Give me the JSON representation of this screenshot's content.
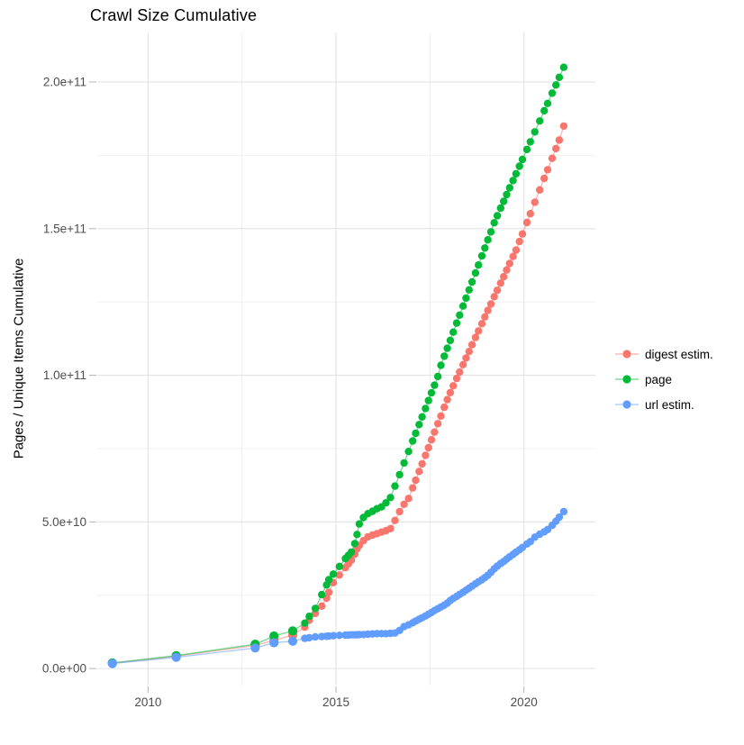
{
  "chart": {
    "title": "Crawl Size Cumulative",
    "y_axis_title": "Pages / Unique Items Cumulative"
  },
  "chart_data": {
    "type": "scatter",
    "title": "Crawl Size Cumulative",
    "xlabel": "",
    "ylabel": "Pages / Unique Items Cumulative",
    "grid": true,
    "legend_position": "right",
    "x_domain": [
      2008.65,
      2021.9
    ],
    "y_domain_billion": [
      -5.8,
      216.9
    ],
    "y_unit_multiplier": 1000000000.0,
    "x_ticks": [
      2010,
      2015,
      2020
    ],
    "x_tick_labels": [
      "2010",
      "2015",
      "2020"
    ],
    "x_minor_ticks": [
      2012.5,
      2017.5
    ],
    "y_ticks_billion": [
      0,
      50,
      100,
      150,
      200
    ],
    "y_tick_labels": [
      "0.0e+00",
      "5.0e+10",
      "1.0e+11",
      "1.5e+11",
      "2.0e+11"
    ],
    "y_minor_ticks_billion": [
      25,
      75,
      125,
      175
    ],
    "series": [
      {
        "name": "digest estim.",
        "color": "#F8766D",
        "points_year_billion": [
          [
            2009.05,
            1.8
          ],
          [
            2010.75,
            4.2
          ],
          [
            2012.85,
            7.9
          ],
          [
            2013.35,
            9.6
          ],
          [
            2013.85,
            11.4
          ],
          [
            2014.17,
            14.1
          ],
          [
            2014.29,
            16.5
          ],
          [
            2014.45,
            18.8
          ],
          [
            2014.62,
            21.3
          ],
          [
            2014.75,
            24.0
          ],
          [
            2014.81,
            26.0
          ],
          [
            2014.93,
            29.3
          ],
          [
            2015.09,
            31.9
          ],
          [
            2015.25,
            34.4
          ],
          [
            2015.33,
            35.7
          ],
          [
            2015.41,
            37.0
          ],
          [
            2015.5,
            39.0
          ],
          [
            2015.56,
            40.8
          ],
          [
            2015.62,
            42.0
          ],
          [
            2015.73,
            43.6
          ],
          [
            2015.85,
            44.9
          ],
          [
            2015.97,
            45.5
          ],
          [
            2016.09,
            46.0
          ],
          [
            2016.21,
            46.5
          ],
          [
            2016.33,
            47.0
          ],
          [
            2016.45,
            47.7
          ],
          [
            2016.57,
            50.5
          ],
          [
            2016.69,
            53.5
          ],
          [
            2016.81,
            56.0
          ],
          [
            2016.93,
            58.0
          ],
          [
            2017.04,
            61.6
          ],
          [
            2017.12,
            64.2
          ],
          [
            2017.21,
            67.2
          ],
          [
            2017.29,
            69.8
          ],
          [
            2017.38,
            72.7
          ],
          [
            2017.46,
            75.3
          ],
          [
            2017.54,
            78.0
          ],
          [
            2017.62,
            80.6
          ],
          [
            2017.71,
            83.5
          ],
          [
            2017.79,
            86.1
          ],
          [
            2017.88,
            89.1
          ],
          [
            2017.96,
            91.7
          ],
          [
            2018.04,
            94.1
          ],
          [
            2018.12,
            96.4
          ],
          [
            2018.21,
            98.9
          ],
          [
            2018.29,
            101.1
          ],
          [
            2018.38,
            103.6
          ],
          [
            2018.46,
            105.9
          ],
          [
            2018.54,
            108.1
          ],
          [
            2018.62,
            110.4
          ],
          [
            2018.71,
            112.9
          ],
          [
            2018.79,
            115.1
          ],
          [
            2018.88,
            117.6
          ],
          [
            2018.96,
            119.9
          ],
          [
            2019.04,
            122.1
          ],
          [
            2019.12,
            124.3
          ],
          [
            2019.21,
            126.8
          ],
          [
            2019.29,
            129.0
          ],
          [
            2019.38,
            131.4
          ],
          [
            2019.46,
            133.6
          ],
          [
            2019.54,
            135.9
          ],
          [
            2019.62,
            138.1
          ],
          [
            2019.71,
            140.5
          ],
          [
            2019.79,
            142.7
          ],
          [
            2019.88,
            145.6
          ],
          [
            2019.96,
            148.2
          ],
          [
            2020.08,
            152.1
          ],
          [
            2020.17,
            155.1
          ],
          [
            2020.29,
            159.0
          ],
          [
            2020.42,
            163.2
          ],
          [
            2020.54,
            167.1
          ],
          [
            2020.63,
            170.1
          ],
          [
            2020.75,
            174.0
          ],
          [
            2020.85,
            177.3
          ],
          [
            2020.94,
            180.2
          ],
          [
            2021.06,
            185.0
          ]
        ]
      },
      {
        "name": "page",
        "color": "#00BA38",
        "points_year_billion": [
          [
            2009.05,
            1.9
          ],
          [
            2010.75,
            4.4
          ],
          [
            2012.85,
            8.3
          ],
          [
            2013.35,
            11.1
          ],
          [
            2013.85,
            12.8
          ],
          [
            2014.17,
            15.5
          ],
          [
            2014.29,
            17.8
          ],
          [
            2014.45,
            20.5
          ],
          [
            2014.62,
            25.2
          ],
          [
            2014.75,
            28.5
          ],
          [
            2014.81,
            30.3
          ],
          [
            2014.93,
            32.2
          ],
          [
            2015.09,
            34.8
          ],
          [
            2015.25,
            37.5
          ],
          [
            2015.33,
            38.6
          ],
          [
            2015.41,
            39.7
          ],
          [
            2015.5,
            42.6
          ],
          [
            2015.56,
            45.7
          ],
          [
            2015.62,
            49.3
          ],
          [
            2015.73,
            51.5
          ],
          [
            2015.85,
            52.8
          ],
          [
            2015.97,
            53.6
          ],
          [
            2016.09,
            54.5
          ],
          [
            2016.21,
            55.1
          ],
          [
            2016.33,
            56.5
          ],
          [
            2016.45,
            58.3
          ],
          [
            2016.57,
            62.2
          ],
          [
            2016.69,
            66.1
          ],
          [
            2016.81,
            70.1
          ],
          [
            2016.93,
            74.0
          ],
          [
            2017.04,
            77.6
          ],
          [
            2017.12,
            80.2
          ],
          [
            2017.21,
            83.2
          ],
          [
            2017.29,
            85.8
          ],
          [
            2017.38,
            88.7
          ],
          [
            2017.46,
            91.4
          ],
          [
            2017.54,
            94.0
          ],
          [
            2017.62,
            96.6
          ],
          [
            2017.71,
            99.6
          ],
          [
            2017.79,
            103.4
          ],
          [
            2017.88,
            106.5
          ],
          [
            2017.96,
            109.2
          ],
          [
            2018.04,
            111.9
          ],
          [
            2018.12,
            114.7
          ],
          [
            2018.21,
            117.8
          ],
          [
            2018.29,
            120.5
          ],
          [
            2018.38,
            123.6
          ],
          [
            2018.46,
            126.3
          ],
          [
            2018.54,
            129.1
          ],
          [
            2018.62,
            131.8
          ],
          [
            2018.71,
            134.9
          ],
          [
            2018.79,
            137.6
          ],
          [
            2018.88,
            140.7
          ],
          [
            2018.96,
            143.4
          ],
          [
            2019.04,
            146.2
          ],
          [
            2019.12,
            148.9
          ],
          [
            2019.21,
            152.0
          ],
          [
            2019.29,
            154.4
          ],
          [
            2019.38,
            157.0
          ],
          [
            2019.46,
            159.3
          ],
          [
            2019.54,
            161.6
          ],
          [
            2019.62,
            163.9
          ],
          [
            2019.71,
            166.4
          ],
          [
            2019.79,
            168.7
          ],
          [
            2019.88,
            171.3
          ],
          [
            2019.96,
            173.6
          ],
          [
            2020.08,
            177.0
          ],
          [
            2020.17,
            179.6
          ],
          [
            2020.29,
            183.0
          ],
          [
            2020.42,
            186.7
          ],
          [
            2020.54,
            190.2
          ],
          [
            2020.63,
            192.7
          ],
          [
            2020.75,
            196.2
          ],
          [
            2020.85,
            199.0
          ],
          [
            2020.94,
            201.6
          ],
          [
            2021.06,
            205.0
          ]
        ]
      },
      {
        "name": "url estim.",
        "color": "#619CFF",
        "points_year_billion": [
          [
            2009.05,
            1.7
          ],
          [
            2010.75,
            3.8
          ],
          [
            2012.85,
            7.0
          ],
          [
            2013.35,
            8.8
          ],
          [
            2013.85,
            9.3
          ],
          [
            2014.17,
            10.3
          ],
          [
            2014.29,
            10.5
          ],
          [
            2014.45,
            10.8
          ],
          [
            2014.62,
            10.9
          ],
          [
            2014.75,
            11.0
          ],
          [
            2014.81,
            11.1
          ],
          [
            2014.93,
            11.2
          ],
          [
            2015.09,
            11.3
          ],
          [
            2015.25,
            11.4
          ],
          [
            2015.33,
            11.4
          ],
          [
            2015.41,
            11.5
          ],
          [
            2015.5,
            11.5
          ],
          [
            2015.56,
            11.5
          ],
          [
            2015.62,
            11.6
          ],
          [
            2015.73,
            11.6
          ],
          [
            2015.85,
            11.7
          ],
          [
            2015.97,
            11.8
          ],
          [
            2016.09,
            11.9
          ],
          [
            2016.21,
            11.9
          ],
          [
            2016.33,
            11.9
          ],
          [
            2016.45,
            12.0
          ],
          [
            2016.57,
            12.1
          ],
          [
            2016.69,
            13.0
          ],
          [
            2016.81,
            14.3
          ],
          [
            2016.93,
            14.9
          ],
          [
            2017.04,
            15.6
          ],
          [
            2017.12,
            16.2
          ],
          [
            2017.21,
            16.8
          ],
          [
            2017.29,
            17.3
          ],
          [
            2017.38,
            17.9
          ],
          [
            2017.46,
            18.5
          ],
          [
            2017.54,
            19.1
          ],
          [
            2017.62,
            19.8
          ],
          [
            2017.71,
            20.4
          ],
          [
            2017.79,
            21.0
          ],
          [
            2017.88,
            21.6
          ],
          [
            2017.96,
            22.3
          ],
          [
            2018.04,
            23.2
          ],
          [
            2018.12,
            23.9
          ],
          [
            2018.21,
            24.6
          ],
          [
            2018.29,
            25.3
          ],
          [
            2018.38,
            26.0
          ],
          [
            2018.46,
            26.7
          ],
          [
            2018.54,
            27.4
          ],
          [
            2018.62,
            28.1
          ],
          [
            2018.71,
            28.9
          ],
          [
            2018.79,
            29.6
          ],
          [
            2018.88,
            30.3
          ],
          [
            2018.96,
            31.0
          ],
          [
            2019.04,
            31.8
          ],
          [
            2019.12,
            32.8
          ],
          [
            2019.21,
            34.0
          ],
          [
            2019.29,
            34.9
          ],
          [
            2019.38,
            35.8
          ],
          [
            2019.46,
            36.5
          ],
          [
            2019.54,
            37.3
          ],
          [
            2019.62,
            38.1
          ],
          [
            2019.71,
            38.9
          ],
          [
            2019.79,
            39.7
          ],
          [
            2019.88,
            40.5
          ],
          [
            2019.96,
            41.3
          ],
          [
            2020.08,
            42.5
          ],
          [
            2020.17,
            43.3
          ],
          [
            2020.29,
            44.8
          ],
          [
            2020.42,
            45.8
          ],
          [
            2020.54,
            46.6
          ],
          [
            2020.63,
            47.4
          ],
          [
            2020.75,
            48.8
          ],
          [
            2020.85,
            50.2
          ],
          [
            2020.94,
            51.6
          ],
          [
            2021.06,
            53.5
          ]
        ]
      }
    ]
  }
}
